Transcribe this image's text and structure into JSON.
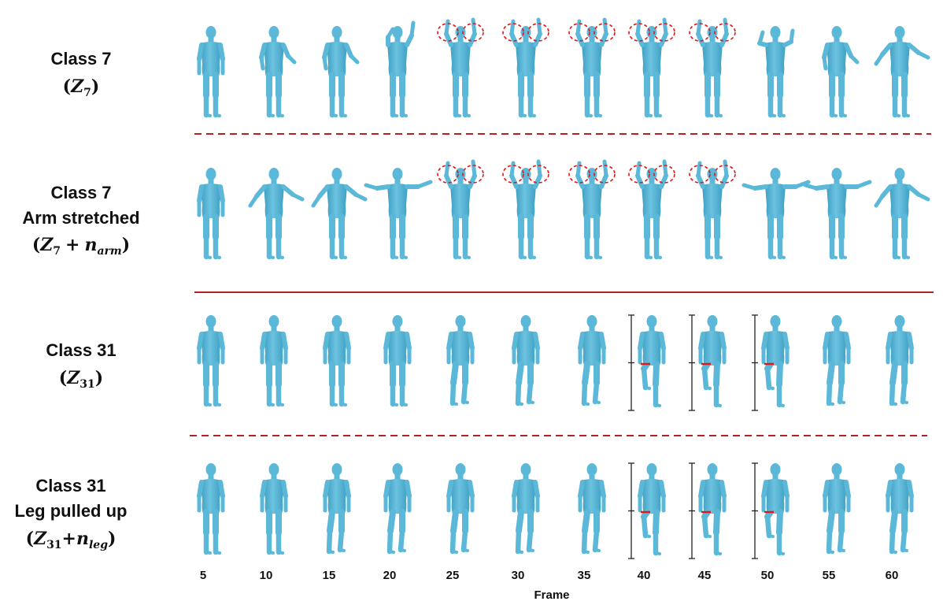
{
  "rows": [
    {
      "title_lines": [
        "Class 7"
      ],
      "formula": {
        "open": "(",
        "base": "Z",
        "sub": "7",
        "plus": "",
        "noise": "",
        "noise_sub": "",
        "close": ")"
      },
      "highlight": "circles",
      "poses": [
        "rest",
        "slight",
        "slight",
        "raise-one",
        "up-both",
        "up-both",
        "up-both",
        "up-both",
        "up-both",
        "slight-up",
        "slight",
        "out"
      ]
    },
    {
      "title_lines": [
        "Class 7",
        "Arm stretched"
      ],
      "formula": {
        "open": "(",
        "base": "Z",
        "sub": "7",
        "plus": "+",
        "noise": "n",
        "noise_sub": "arm",
        "close": ")"
      },
      "highlight": "circles",
      "poses": [
        "rest",
        "out",
        "out",
        "stretch",
        "up-both",
        "up-both",
        "up-both",
        "up-both",
        "up-both",
        "stretch",
        "stretch",
        "out"
      ]
    },
    {
      "title_lines": [
        "Class 31"
      ],
      "formula": {
        "open": "(",
        "base": "Z",
        "sub": "31",
        "plus": "",
        "noise": "",
        "noise_sub": "",
        "close": ")"
      },
      "highlight": "bars",
      "poses": [
        "rest",
        "rest",
        "rest",
        "rest",
        "walk",
        "walk",
        "walk",
        "leg",
        "leg",
        "leg",
        "walk",
        "walk"
      ]
    },
    {
      "title_lines": [
        "Class 31",
        "Leg pulled up"
      ],
      "formula": {
        "open": "(",
        "base": "Z",
        "sub": "31",
        "plus": "+",
        "noise": "n",
        "noise_sub": "leg",
        "close": ")"
      },
      "highlight": "bars",
      "poses": [
        "rest",
        "rest",
        "walk",
        "walk",
        "walk",
        "walk",
        "walk",
        "leg",
        "leg",
        "leg",
        "walk",
        "walk"
      ]
    }
  ],
  "frames": [
    "5",
    "10",
    "15",
    "20",
    "25",
    "30",
    "35",
    "40",
    "45",
    "50",
    "55",
    "60"
  ],
  "frame_axis_label": "Frame",
  "highlight_frames": {
    "circles": [
      "25",
      "30",
      "35",
      "40",
      "45"
    ],
    "bars": [
      "40",
      "45",
      "50"
    ]
  },
  "separators": [
    {
      "between": "rows 1-2",
      "style": "dashed"
    },
    {
      "between": "rows 2-3",
      "style": "solid"
    },
    {
      "between": "rows 3-4",
      "style": "dashed"
    }
  ],
  "colors": {
    "body_fill": "#5bb8d8",
    "body_shade": "#3f9fc2",
    "separator": "#b22222",
    "circle": "#e01818",
    "bar": "#e01818",
    "bracket": "#222222",
    "text": "#111111"
  }
}
